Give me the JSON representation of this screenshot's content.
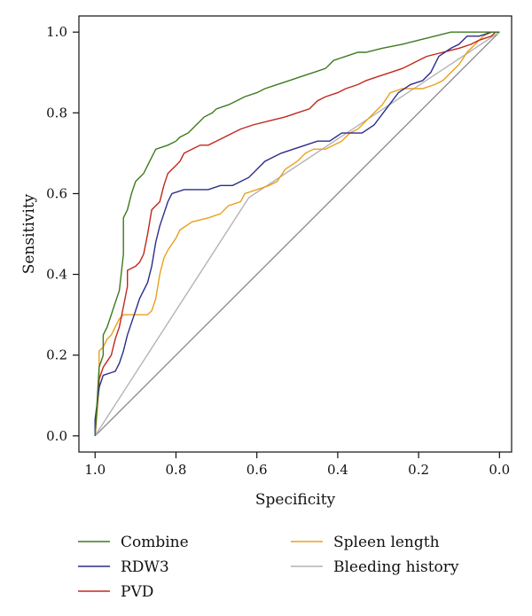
{
  "chart_data": {
    "type": "line",
    "title": "",
    "xlabel": "Specificity",
    "ylabel": "Sensitivity",
    "xlim": [
      1.04,
      -0.03
    ],
    "ylim": [
      -0.04,
      1.04
    ],
    "x_reversed": true,
    "x_ticks": [
      {
        "value": 1.0,
        "label": "1.0"
      },
      {
        "value": 0.8,
        "label": "0.8"
      },
      {
        "value": 0.6,
        "label": "0.6"
      },
      {
        "value": 0.4,
        "label": "0.4"
      },
      {
        "value": 0.2,
        "label": "0.2"
      },
      {
        "value": 0.0,
        "label": "0.0"
      }
    ],
    "y_ticks": [
      {
        "value": 0.0,
        "label": "0.0"
      },
      {
        "value": 0.2,
        "label": "0.2"
      },
      {
        "value": 0.4,
        "label": "0.4"
      },
      {
        "value": 0.6,
        "label": "0.6"
      },
      {
        "value": 0.8,
        "label": "0.8"
      },
      {
        "value": 1.0,
        "label": "1.0"
      }
    ],
    "grid": false,
    "legend_position": "bottom",
    "reference_line": {
      "from": [
        1.0,
        0.0
      ],
      "to": [
        0.0,
        1.0
      ],
      "color": "#8a8a8a"
    },
    "series": [
      {
        "name": "Combine",
        "color": "#3d7a1e",
        "points": [
          [
            1.0,
            0.0
          ],
          [
            0.99,
            0.17
          ],
          [
            0.98,
            0.2
          ],
          [
            0.98,
            0.25
          ],
          [
            0.97,
            0.27
          ],
          [
            0.96,
            0.3
          ],
          [
            0.95,
            0.33
          ],
          [
            0.94,
            0.36
          ],
          [
            0.93,
            0.45
          ],
          [
            0.93,
            0.54
          ],
          [
            0.92,
            0.56
          ],
          [
            0.91,
            0.6
          ],
          [
            0.9,
            0.63
          ],
          [
            0.89,
            0.64
          ],
          [
            0.88,
            0.65
          ],
          [
            0.87,
            0.67
          ],
          [
            0.86,
            0.69
          ],
          [
            0.85,
            0.71
          ],
          [
            0.82,
            0.72
          ],
          [
            0.8,
            0.73
          ],
          [
            0.79,
            0.74
          ],
          [
            0.77,
            0.75
          ],
          [
            0.75,
            0.77
          ],
          [
            0.73,
            0.79
          ],
          [
            0.71,
            0.8
          ],
          [
            0.7,
            0.81
          ],
          [
            0.67,
            0.82
          ],
          [
            0.65,
            0.83
          ],
          [
            0.63,
            0.84
          ],
          [
            0.6,
            0.85
          ],
          [
            0.58,
            0.86
          ],
          [
            0.55,
            0.87
          ],
          [
            0.52,
            0.88
          ],
          [
            0.49,
            0.89
          ],
          [
            0.46,
            0.9
          ],
          [
            0.43,
            0.91
          ],
          [
            0.41,
            0.93
          ],
          [
            0.38,
            0.94
          ],
          [
            0.35,
            0.95
          ],
          [
            0.33,
            0.95
          ],
          [
            0.29,
            0.96
          ],
          [
            0.24,
            0.97
          ],
          [
            0.2,
            0.98
          ],
          [
            0.16,
            0.99
          ],
          [
            0.12,
            1.0
          ],
          [
            0.0,
            1.0
          ]
        ]
      },
      {
        "name": "RDW3",
        "color": "#2b2d8a",
        "points": [
          [
            1.0,
            0.0
          ],
          [
            1.0,
            0.04
          ],
          [
            0.99,
            0.12
          ],
          [
            0.98,
            0.15
          ],
          [
            0.95,
            0.16
          ],
          [
            0.94,
            0.18
          ],
          [
            0.93,
            0.21
          ],
          [
            0.92,
            0.25
          ],
          [
            0.91,
            0.28
          ],
          [
            0.9,
            0.31
          ],
          [
            0.89,
            0.34
          ],
          [
            0.87,
            0.38
          ],
          [
            0.86,
            0.42
          ],
          [
            0.85,
            0.48
          ],
          [
            0.84,
            0.52
          ],
          [
            0.83,
            0.55
          ],
          [
            0.82,
            0.58
          ],
          [
            0.81,
            0.6
          ],
          [
            0.78,
            0.61
          ],
          [
            0.72,
            0.61
          ],
          [
            0.69,
            0.62
          ],
          [
            0.66,
            0.62
          ],
          [
            0.64,
            0.63
          ],
          [
            0.62,
            0.64
          ],
          [
            0.6,
            0.66
          ],
          [
            0.58,
            0.68
          ],
          [
            0.56,
            0.69
          ],
          [
            0.54,
            0.7
          ],
          [
            0.51,
            0.71
          ],
          [
            0.48,
            0.72
          ],
          [
            0.45,
            0.73
          ],
          [
            0.42,
            0.73
          ],
          [
            0.39,
            0.75
          ],
          [
            0.36,
            0.75
          ],
          [
            0.34,
            0.75
          ],
          [
            0.31,
            0.77
          ],
          [
            0.28,
            0.81
          ],
          [
            0.25,
            0.85
          ],
          [
            0.22,
            0.87
          ],
          [
            0.19,
            0.88
          ],
          [
            0.17,
            0.9
          ],
          [
            0.15,
            0.94
          ],
          [
            0.12,
            0.96
          ],
          [
            0.1,
            0.97
          ],
          [
            0.08,
            0.99
          ],
          [
            0.05,
            0.99
          ],
          [
            0.02,
            1.0
          ],
          [
            0.0,
            1.0
          ]
        ]
      },
      {
        "name": "PVD",
        "color": "#c0281a",
        "points": [
          [
            1.0,
            0.0
          ],
          [
            0.99,
            0.14
          ],
          [
            0.98,
            0.17
          ],
          [
            0.96,
            0.2
          ],
          [
            0.95,
            0.24
          ],
          [
            0.94,
            0.27
          ],
          [
            0.93,
            0.32
          ],
          [
            0.92,
            0.37
          ],
          [
            0.92,
            0.41
          ],
          [
            0.9,
            0.42
          ],
          [
            0.89,
            0.43
          ],
          [
            0.88,
            0.45
          ],
          [
            0.87,
            0.5
          ],
          [
            0.86,
            0.56
          ],
          [
            0.84,
            0.58
          ],
          [
            0.83,
            0.62
          ],
          [
            0.82,
            0.65
          ],
          [
            0.81,
            0.66
          ],
          [
            0.8,
            0.67
          ],
          [
            0.79,
            0.68
          ],
          [
            0.78,
            0.7
          ],
          [
            0.76,
            0.71
          ],
          [
            0.74,
            0.72
          ],
          [
            0.72,
            0.72
          ],
          [
            0.7,
            0.73
          ],
          [
            0.68,
            0.74
          ],
          [
            0.66,
            0.75
          ],
          [
            0.64,
            0.76
          ],
          [
            0.61,
            0.77
          ],
          [
            0.57,
            0.78
          ],
          [
            0.53,
            0.79
          ],
          [
            0.5,
            0.8
          ],
          [
            0.47,
            0.81
          ],
          [
            0.45,
            0.83
          ],
          [
            0.43,
            0.84
          ],
          [
            0.4,
            0.85
          ],
          [
            0.38,
            0.86
          ],
          [
            0.35,
            0.87
          ],
          [
            0.33,
            0.88
          ],
          [
            0.3,
            0.89
          ],
          [
            0.27,
            0.9
          ],
          [
            0.24,
            0.91
          ],
          [
            0.22,
            0.92
          ],
          [
            0.2,
            0.93
          ],
          [
            0.18,
            0.94
          ],
          [
            0.14,
            0.95
          ],
          [
            0.1,
            0.96
          ],
          [
            0.07,
            0.97
          ],
          [
            0.05,
            0.98
          ],
          [
            0.02,
            0.99
          ],
          [
            0.01,
            1.0
          ],
          [
            0.0,
            1.0
          ]
        ]
      },
      {
        "name": "Spleen length",
        "color": "#e8a11c",
        "points": [
          [
            1.0,
            0.0
          ],
          [
            0.99,
            0.12
          ],
          [
            0.99,
            0.21
          ],
          [
            0.98,
            0.22
          ],
          [
            0.97,
            0.24
          ],
          [
            0.96,
            0.25
          ],
          [
            0.95,
            0.27
          ],
          [
            0.94,
            0.29
          ],
          [
            0.93,
            0.3
          ],
          [
            0.87,
            0.3
          ],
          [
            0.86,
            0.31
          ],
          [
            0.85,
            0.34
          ],
          [
            0.84,
            0.4
          ],
          [
            0.83,
            0.44
          ],
          [
            0.82,
            0.46
          ],
          [
            0.8,
            0.49
          ],
          [
            0.79,
            0.51
          ],
          [
            0.76,
            0.53
          ],
          [
            0.72,
            0.54
          ],
          [
            0.69,
            0.55
          ],
          [
            0.67,
            0.57
          ],
          [
            0.64,
            0.58
          ],
          [
            0.63,
            0.6
          ],
          [
            0.6,
            0.61
          ],
          [
            0.57,
            0.62
          ],
          [
            0.55,
            0.63
          ],
          [
            0.53,
            0.66
          ],
          [
            0.5,
            0.68
          ],
          [
            0.48,
            0.7
          ],
          [
            0.46,
            0.71
          ],
          [
            0.43,
            0.71
          ],
          [
            0.41,
            0.72
          ],
          [
            0.39,
            0.73
          ],
          [
            0.37,
            0.75
          ],
          [
            0.35,
            0.76
          ],
          [
            0.33,
            0.78
          ],
          [
            0.31,
            0.8
          ],
          [
            0.29,
            0.82
          ],
          [
            0.27,
            0.85
          ],
          [
            0.24,
            0.86
          ],
          [
            0.19,
            0.86
          ],
          [
            0.16,
            0.87
          ],
          [
            0.14,
            0.88
          ],
          [
            0.12,
            0.9
          ],
          [
            0.1,
            0.92
          ],
          [
            0.08,
            0.95
          ],
          [
            0.06,
            0.97
          ],
          [
            0.04,
            0.99
          ],
          [
            0.02,
            1.0
          ],
          [
            0.0,
            1.0
          ]
        ]
      },
      {
        "name": "Bleeding history",
        "color": "#b4b4b4",
        "points": [
          [
            1.0,
            0.0
          ],
          [
            0.62,
            0.59
          ],
          [
            0.0,
            1.0
          ]
        ]
      }
    ]
  }
}
